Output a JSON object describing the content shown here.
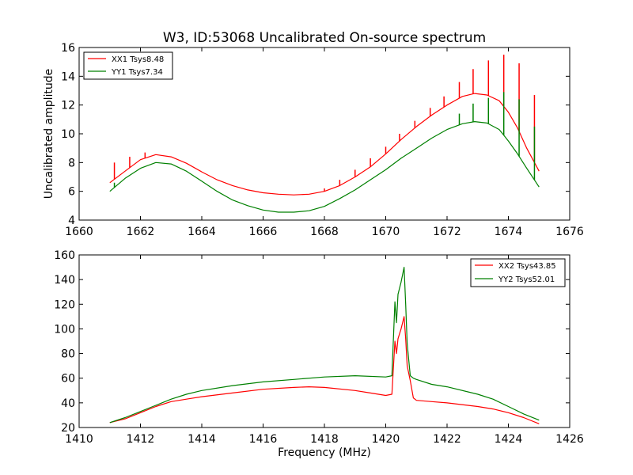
{
  "chart_data": [
    {
      "type": "line",
      "title": "W3, ID:53068 Uncalibrated On-source spectrum",
      "xlabel": "",
      "ylabel": "Uncalibrated amplitude",
      "xlim": [
        1660,
        1676
      ],
      "ylim": [
        4,
        16
      ],
      "xticks": [
        "1660",
        "1662",
        "1664",
        "1666",
        "1668",
        "1670",
        "1672",
        "1674",
        "1676"
      ],
      "yticks": [
        "4",
        "6",
        "8",
        "10",
        "12",
        "14",
        "16"
      ],
      "legend": "top-left",
      "series": [
        {
          "name": "XX1 Tsys8.48",
          "color": "#ff0000",
          "x": [
            1661.0,
            1661.5,
            1662.0,
            1662.5,
            1663.0,
            1663.5,
            1664.0,
            1664.5,
            1665.0,
            1665.5,
            1666.0,
            1666.5,
            1667.0,
            1667.5,
            1668.0,
            1668.5,
            1669.0,
            1669.5,
            1670.0,
            1670.5,
            1671.0,
            1671.5,
            1672.0,
            1672.5,
            1672.9,
            1673.3,
            1673.7,
            1674.0,
            1674.3,
            1674.6,
            1675.0
          ],
          "y": [
            6.6,
            7.4,
            8.2,
            8.55,
            8.4,
            7.95,
            7.35,
            6.8,
            6.4,
            6.1,
            5.9,
            5.8,
            5.75,
            5.8,
            6.0,
            6.4,
            7.0,
            7.7,
            8.6,
            9.6,
            10.5,
            11.3,
            12.0,
            12.6,
            12.8,
            12.7,
            12.3,
            11.5,
            10.4,
            9.0,
            7.4
          ]
        },
        {
          "name": "YY1 Tsys7.34",
          "color": "#008000",
          "x": [
            1661.0,
            1661.5,
            1662.0,
            1662.5,
            1663.0,
            1663.5,
            1664.0,
            1664.5,
            1665.0,
            1665.5,
            1666.0,
            1666.5,
            1667.0,
            1667.5,
            1668.0,
            1668.5,
            1669.0,
            1669.5,
            1670.0,
            1670.5,
            1671.0,
            1671.5,
            1672.0,
            1672.5,
            1672.9,
            1673.3,
            1673.7,
            1674.0,
            1674.3,
            1674.6,
            1675.0
          ],
          "y": [
            6.0,
            6.9,
            7.6,
            8.0,
            7.9,
            7.4,
            6.7,
            6.0,
            5.4,
            5.0,
            4.7,
            4.55,
            4.55,
            4.65,
            4.95,
            5.5,
            6.1,
            6.8,
            7.5,
            8.3,
            9.0,
            9.7,
            10.3,
            10.7,
            10.85,
            10.75,
            10.3,
            9.5,
            8.6,
            7.6,
            6.3
          ]
        }
      ],
      "spikes": [
        {
          "series": 0,
          "x": 1661.15,
          "y": 8.0
        },
        {
          "series": 0,
          "x": 1661.65,
          "y": 8.4
        },
        {
          "series": 0,
          "x": 1662.15,
          "y": 8.7
        },
        {
          "series": 0,
          "x": 1668.0,
          "y": 6.2
        },
        {
          "series": 0,
          "x": 1668.5,
          "y": 6.8
        },
        {
          "series": 0,
          "x": 1669.0,
          "y": 7.5
        },
        {
          "series": 0,
          "x": 1669.5,
          "y": 8.3
        },
        {
          "series": 0,
          "x": 1670.0,
          "y": 9.1
        },
        {
          "series": 0,
          "x": 1670.45,
          "y": 10.0
        },
        {
          "series": 0,
          "x": 1670.95,
          "y": 10.9
        },
        {
          "series": 0,
          "x": 1671.45,
          "y": 11.8
        },
        {
          "series": 0,
          "x": 1671.9,
          "y": 12.6
        },
        {
          "series": 0,
          "x": 1672.4,
          "y": 13.6
        },
        {
          "series": 0,
          "x": 1672.85,
          "y": 14.5
        },
        {
          "series": 0,
          "x": 1673.35,
          "y": 15.1
        },
        {
          "series": 0,
          "x": 1673.85,
          "y": 15.5
        },
        {
          "series": 0,
          "x": 1674.35,
          "y": 14.9
        },
        {
          "series": 0,
          "x": 1674.85,
          "y": 12.7
        },
        {
          "series": 1,
          "x": 1661.15,
          "y": 6.6
        },
        {
          "series": 1,
          "x": 1672.4,
          "y": 11.4
        },
        {
          "series": 1,
          "x": 1672.85,
          "y": 12.1
        },
        {
          "series": 1,
          "x": 1673.35,
          "y": 12.5
        },
        {
          "series": 1,
          "x": 1673.85,
          "y": 12.9
        },
        {
          "series": 1,
          "x": 1674.35,
          "y": 12.4
        },
        {
          "series": 1,
          "x": 1674.85,
          "y": 10.5
        }
      ]
    },
    {
      "type": "line",
      "title": "",
      "xlabel": "Frequency (MHz)",
      "ylabel": "",
      "xlim": [
        1410,
        1426
      ],
      "ylim": [
        20,
        160
      ],
      "xticks": [
        "1410",
        "1412",
        "1414",
        "1416",
        "1418",
        "1420",
        "1422",
        "1424",
        "1426"
      ],
      "yticks": [
        "20",
        "40",
        "60",
        "80",
        "100",
        "120",
        "140",
        "160"
      ],
      "legend": "top-right",
      "series": [
        {
          "name": "XX2 Tsys43.85",
          "color": "#ff0000",
          "x": [
            1411.0,
            1411.5,
            1412.0,
            1412.5,
            1413.0,
            1413.5,
            1414.0,
            1415.0,
            1416.0,
            1417.0,
            1417.5,
            1418.0,
            1419.0,
            1419.5,
            1420.0,
            1420.2,
            1420.3,
            1420.35,
            1420.4,
            1420.5,
            1420.6,
            1420.65,
            1420.7,
            1420.8,
            1420.9,
            1421.0,
            1421.5,
            1422.0,
            1423.0,
            1423.5,
            1424.0,
            1424.5,
            1425.0
          ],
          "y": [
            24,
            27,
            32,
            37,
            41,
            43,
            45,
            48,
            51,
            52.5,
            53,
            52.5,
            50,
            48,
            46,
            47,
            90,
            80,
            92,
            100,
            110,
            92,
            70,
            58,
            44,
            42,
            41,
            40,
            37,
            35,
            32,
            28,
            23
          ]
        },
        {
          "name": "YY2 Tsys52.01",
          "color": "#008000",
          "x": [
            1411.0,
            1411.5,
            1412.0,
            1412.5,
            1413.0,
            1413.5,
            1414.0,
            1415.0,
            1416.0,
            1417.0,
            1418.0,
            1419.0,
            1420.0,
            1420.2,
            1420.3,
            1420.35,
            1420.4,
            1420.5,
            1420.6,
            1420.65,
            1420.7,
            1420.8,
            1420.9,
            1421.0,
            1421.5,
            1422.0,
            1423.0,
            1423.5,
            1424.0,
            1424.5,
            1425.0
          ],
          "y": [
            24,
            28,
            33,
            38,
            43,
            47,
            50,
            54,
            57,
            59,
            61,
            62,
            61,
            62,
            122,
            105,
            128,
            138,
            150,
            120,
            88,
            62,
            60,
            59,
            55,
            53,
            47,
            43,
            37,
            31,
            26
          ]
        }
      ],
      "spikes": []
    }
  ]
}
